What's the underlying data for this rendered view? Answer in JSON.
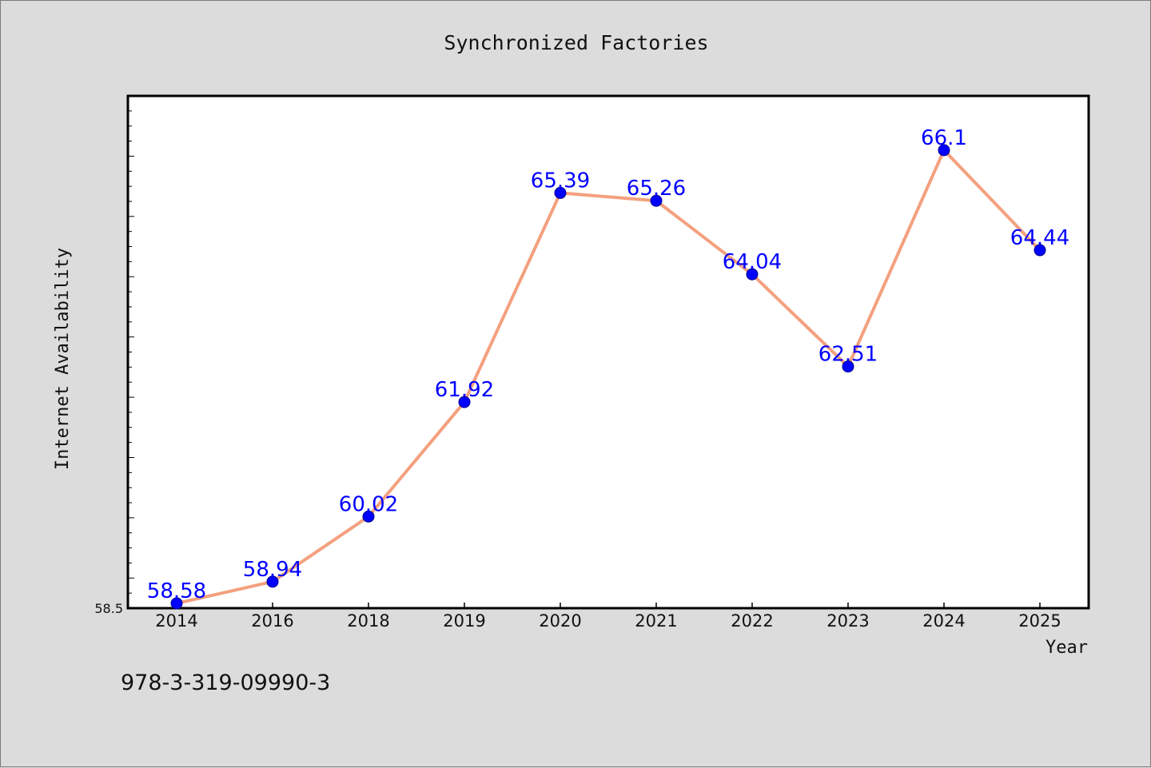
{
  "footer_text": "978-3-319-09990-3",
  "colors": {
    "background": "#dcdcdc",
    "plot_background": "#ffffff",
    "line": "#f4a07e",
    "marker": "#0000ff",
    "data_label": "#0000ff"
  },
  "chart_data": {
    "type": "line",
    "title": "Synchronized Factories",
    "xlabel": "Year",
    "ylabel": "Internet Availability",
    "categories": [
      "2014",
      "2016",
      "2018",
      "2019",
      "2020",
      "2021",
      "2022",
      "2023",
      "2024",
      "2025"
    ],
    "series": [
      {
        "values": [
          58.58,
          58.94,
          60.02,
          61.92,
          65.39,
          65.26,
          64.04,
          62.51,
          66.1,
          64.44
        ],
        "data_labels": [
          "58.58",
          "58.94",
          "60.02",
          "61.92",
          "65.39",
          "65.26",
          "64.04",
          "62.51",
          "66.1",
          "64.44"
        ]
      }
    ],
    "y_tick_labels": [
      "58.5"
    ],
    "ylim": [
      58.5,
      67.0
    ],
    "grid": false,
    "legend": "none"
  }
}
